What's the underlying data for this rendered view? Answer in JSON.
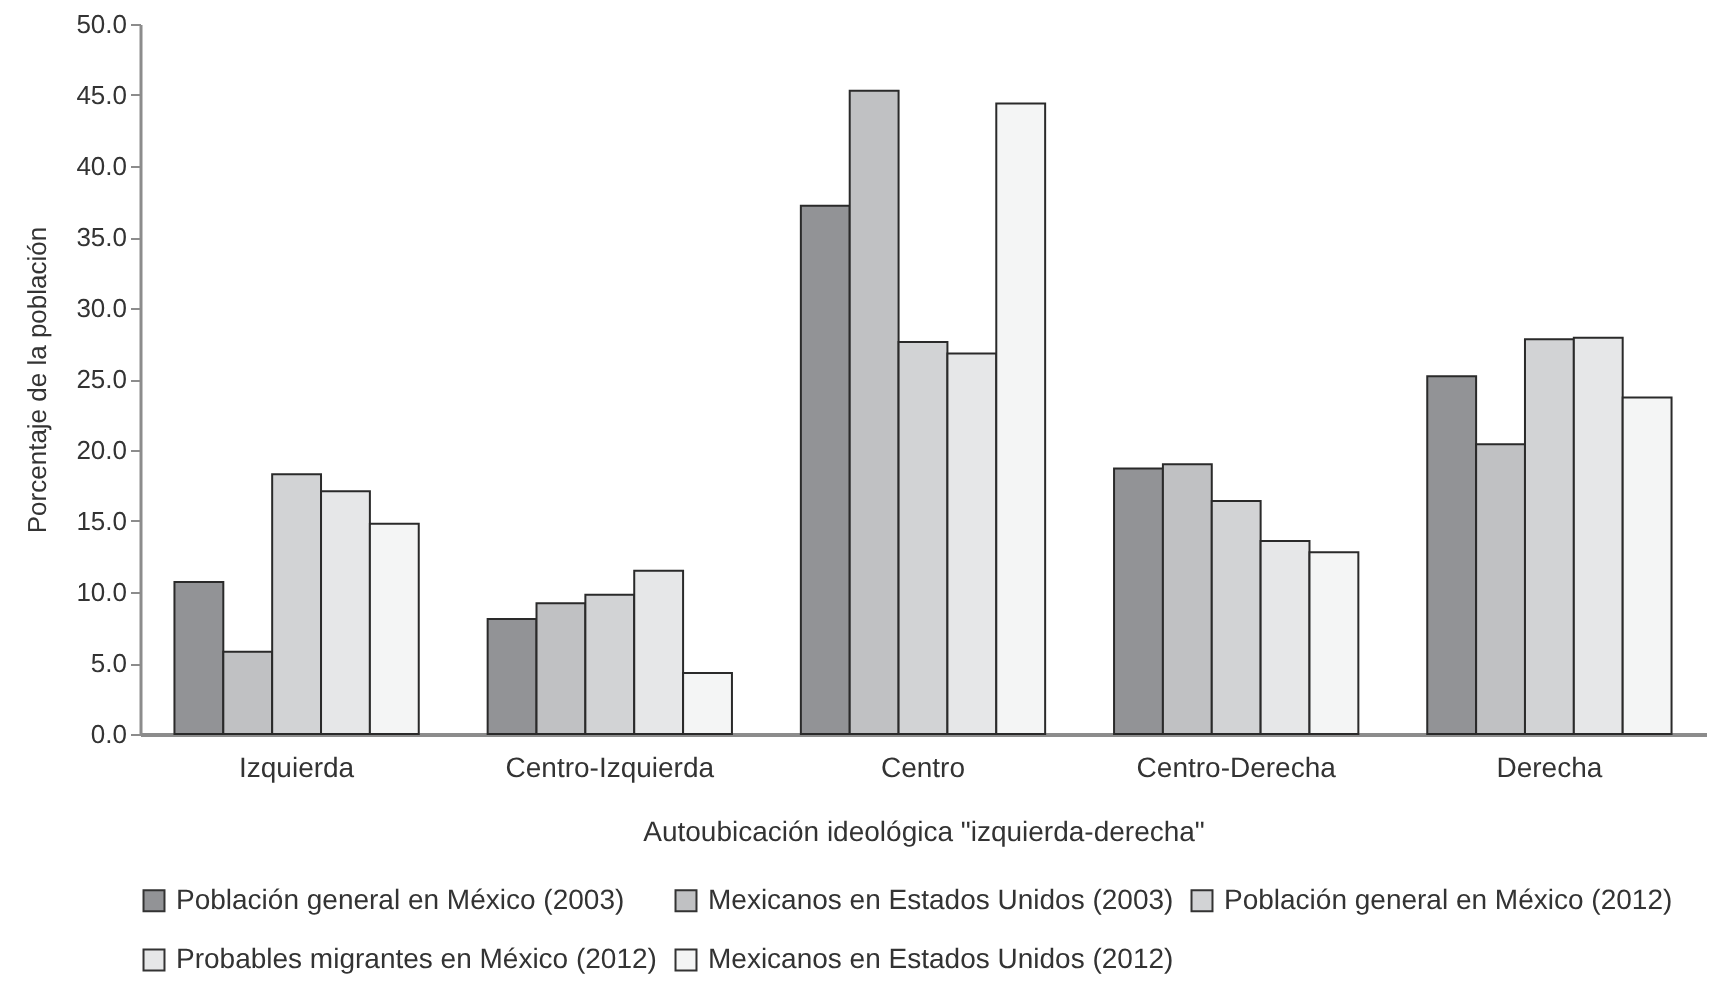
{
  "chart_data": {
    "type": "bar",
    "xlabel": "Autoubicación ideológica \"izquierda-derecha\"",
    "ylabel": "Porcentaje de la población",
    "categories": [
      "Izquierda",
      "Centro-Izquierda",
      "Centro",
      "Centro-Derecha",
      "Derecha"
    ],
    "series": [
      {
        "name": "Población general en México (2003)",
        "color": "#929396",
        "values": [
          10.7,
          8.1,
          37.2,
          18.7,
          25.2
        ]
      },
      {
        "name": "Mexicanos en Estados Unidos (2003)",
        "color": "#c0c1c3",
        "values": [
          5.8,
          9.2,
          45.3,
          19.0,
          20.4
        ]
      },
      {
        "name": "Población general en México (2012)",
        "color": "#d2d3d5",
        "values": [
          18.3,
          9.8,
          27.6,
          16.4,
          27.8
        ]
      },
      {
        "name": "Probables migrantes en México (2012)",
        "color": "#e6e7e8",
        "values": [
          17.1,
          11.5,
          26.8,
          13.6,
          27.9
        ]
      },
      {
        "name": "Mexicanos en Estados Unidos (2012)",
        "color": "#f4f5f5",
        "values": [
          14.8,
          4.3,
          44.4,
          12.8,
          23.7
        ]
      }
    ],
    "ylim": [
      0,
      50
    ],
    "yticks": [
      {
        "value": 0,
        "label": "0.0"
      },
      {
        "value": 5,
        "label": "5.0"
      },
      {
        "value": 10,
        "label": "10.0"
      },
      {
        "value": 15,
        "label": "15.0"
      },
      {
        "value": 20,
        "label": "20.0"
      },
      {
        "value": 25,
        "label": "25.0"
      },
      {
        "value": 30,
        "label": "30.0"
      },
      {
        "value": 35,
        "label": "35.0"
      },
      {
        "value": 40,
        "label": "40.0"
      },
      {
        "value": 45,
        "label": "45.0"
      },
      {
        "value": 50,
        "label": "50.0"
      }
    ],
    "legend": "bottom"
  }
}
